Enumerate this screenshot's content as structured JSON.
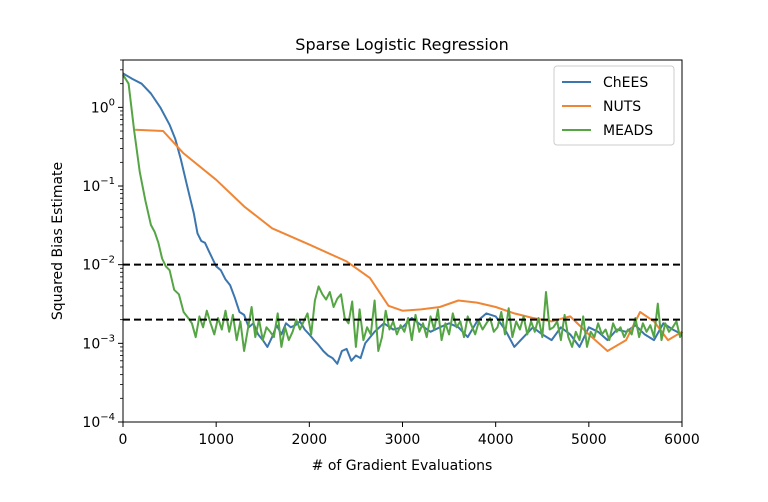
{
  "chart_data": {
    "type": "line",
    "title": "Sparse Logistic Regression",
    "xlabel": "# of Gradient Evaluations",
    "ylabel": "Squared Bias Estimate",
    "xlim": [
      0,
      6000
    ],
    "yscale": "log",
    "ylim": [
      0.0001,
      4
    ],
    "xticks": [
      0,
      1000,
      2000,
      3000,
      4000,
      5000,
      6000
    ],
    "xtick_labels": [
      "0",
      "1000",
      "2000",
      "3000",
      "4000",
      "5000",
      "6000"
    ],
    "yticks": [
      {
        "value": 1,
        "base": "10",
        "exp": "0"
      },
      {
        "value": 0.1,
        "base": "10",
        "exp": "−1"
      },
      {
        "value": 0.01,
        "base": "10",
        "exp": "−2"
      },
      {
        "value": 0.001,
        "base": "10",
        "exp": "−3"
      },
      {
        "value": 0.0001,
        "base": "10",
        "exp": "−4"
      }
    ],
    "reference_lines": [
      0.01,
      0.002
    ],
    "legend_position": "top-right",
    "series": [
      {
        "name": "ChEES",
        "color": "#3c76af",
        "x": [
          0,
          100,
          200,
          300,
          400,
          500,
          560,
          620,
          680,
          720,
          760,
          800,
          840,
          880,
          920,
          960,
          1000,
          1050,
          1100,
          1150,
          1200,
          1250,
          1300,
          1350,
          1400,
          1450,
          1500,
          1550,
          1600,
          1650,
          1700,
          1750,
          1800,
          1850,
          1900,
          1950,
          2000,
          2050,
          2100,
          2150,
          2200,
          2250,
          2300,
          2350,
          2400,
          2450,
          2500,
          2550,
          2600,
          2700,
          2800,
          2900,
          3000,
          3100,
          3200,
          3300,
          3400,
          3500,
          3600,
          3700,
          3800,
          3900,
          4000,
          4100,
          4200,
          4300,
          4400,
          4500,
          4600,
          4700,
          4800,
          4900,
          5000,
          5100,
          5200,
          5300,
          5400,
          5500,
          5600,
          5700,
          5800,
          5900,
          6000
        ],
        "y": [
          2.7,
          2.3,
          2.0,
          1.5,
          1.0,
          0.6,
          0.4,
          0.22,
          0.11,
          0.07,
          0.045,
          0.025,
          0.02,
          0.019,
          0.015,
          0.012,
          0.0095,
          0.0085,
          0.0065,
          0.0055,
          0.0038,
          0.0025,
          0.0023,
          0.0016,
          0.0018,
          0.0013,
          0.0011,
          0.0009,
          0.0012,
          0.0017,
          0.0013,
          0.0018,
          0.0016,
          0.0017,
          0.0019,
          0.0015,
          0.0013,
          0.0011,
          0.00095,
          0.0008,
          0.0007,
          0.00065,
          0.00055,
          0.0008,
          0.00085,
          0.0006,
          0.0007,
          0.00065,
          0.001,
          0.0014,
          0.0018,
          0.0015,
          0.0016,
          0.0021,
          0.0017,
          0.0014,
          0.0016,
          0.0018,
          0.0016,
          0.0012,
          0.0019,
          0.0024,
          0.0022,
          0.0015,
          0.0009,
          0.0012,
          0.0016,
          0.0013,
          0.0011,
          0.0016,
          0.0013,
          0.0009,
          0.0016,
          0.0014,
          0.0011,
          0.0015,
          0.0014,
          0.0017,
          0.0013,
          0.0011,
          0.0018,
          0.0015,
          0.0013
        ]
      },
      {
        "name": "NUTS",
        "color": "#ef8636",
        "x": [
          130,
          430,
          650,
          1000,
          1300,
          1600,
          2000,
          2400,
          2650,
          2850,
          3000,
          3200,
          3400,
          3600,
          3800,
          4000,
          4200,
          4400,
          4600,
          4800,
          5000,
          5200,
          5400,
          5550,
          5700,
          5850,
          6000
        ],
        "y": [
          0.52,
          0.5,
          0.26,
          0.12,
          0.055,
          0.029,
          0.018,
          0.011,
          0.0068,
          0.003,
          0.0026,
          0.0027,
          0.0029,
          0.0035,
          0.0033,
          0.0029,
          0.0024,
          0.0021,
          0.0019,
          0.0022,
          0.0013,
          0.0008,
          0.0011,
          0.0025,
          0.0019,
          0.0011,
          0.0014
        ]
      },
      {
        "name": "MEADS",
        "color": "#55a545",
        "x": [
          0,
          60,
          120,
          180,
          240,
          300,
          340,
          380,
          420,
          460,
          500,
          550,
          600,
          650,
          700,
          740,
          780,
          820,
          860,
          900,
          940,
          980,
          1020,
          1060,
          1100,
          1140,
          1180,
          1220,
          1260,
          1300,
          1340,
          1380,
          1420,
          1460,
          1500,
          1540,
          1580,
          1620,
          1660,
          1700,
          1740,
          1780,
          1820,
          1860,
          1900,
          1940,
          1980,
          2020,
          2060,
          2100,
          2140,
          2180,
          2220,
          2260,
          2300,
          2340,
          2380,
          2420,
          2460,
          2500,
          2540,
          2580,
          2620,
          2660,
          2700,
          2740,
          2780,
          2820,
          2860,
          2900,
          2940,
          2980,
          3020,
          3060,
          3100,
          3140,
          3180,
          3220,
          3260,
          3300,
          3340,
          3380,
          3420,
          3460,
          3500,
          3540,
          3580,
          3620,
          3660,
          3700,
          3740,
          3780,
          3820,
          3860,
          3900,
          3940,
          3980,
          4020,
          4060,
          4100,
          4140,
          4180,
          4220,
          4260,
          4300,
          4340,
          4380,
          4420,
          4460,
          4500,
          4540,
          4580,
          4620,
          4660,
          4700,
          4740,
          4780,
          4820,
          4860,
          4900,
          4940,
          4980,
          5020,
          5060,
          5100,
          5140,
          5180,
          5220,
          5260,
          5300,
          5340,
          5380,
          5420,
          5460,
          5500,
          5540,
          5580,
          5620,
          5660,
          5700,
          5740,
          5780,
          5820,
          5860,
          5900,
          5940,
          5980,
          6000
        ],
        "y": [
          2.6,
          2.0,
          0.5,
          0.15,
          0.065,
          0.032,
          0.026,
          0.019,
          0.012,
          0.0095,
          0.0085,
          0.0048,
          0.0042,
          0.0025,
          0.0021,
          0.0018,
          0.0012,
          0.0022,
          0.0016,
          0.0026,
          0.0018,
          0.0013,
          0.0021,
          0.0015,
          0.0026,
          0.0014,
          0.0023,
          0.0011,
          0.0019,
          0.0008,
          0.0015,
          0.0029,
          0.0012,
          0.002,
          0.0011,
          0.0016,
          0.0014,
          0.0012,
          0.0024,
          0.0009,
          0.0016,
          0.0011,
          0.0014,
          0.002,
          0.0015,
          0.0019,
          0.0024,
          0.0013,
          0.0035,
          0.0053,
          0.0042,
          0.0036,
          0.0045,
          0.0029,
          0.0037,
          0.0042,
          0.0021,
          0.0018,
          0.0034,
          0.0009,
          0.0027,
          0.0011,
          0.0016,
          0.0013,
          0.0035,
          0.0008,
          0.0012,
          0.0026,
          0.0015,
          0.0019,
          0.0013,
          0.0017,
          0.0014,
          0.0021,
          0.0011,
          0.0023,
          0.0014,
          0.0018,
          0.0012,
          0.0022,
          0.0015,
          0.0027,
          0.0011,
          0.0018,
          0.0013,
          0.0024,
          0.0016,
          0.0019,
          0.0012,
          0.0022,
          0.0017,
          0.0013,
          0.0019,
          0.0015,
          0.0018,
          0.0021,
          0.0014,
          0.0016,
          0.0025,
          0.0013,
          0.0028,
          0.0012,
          0.0019,
          0.0015,
          0.0022,
          0.0013,
          0.0019,
          0.0014,
          0.0021,
          0.0012,
          0.0045,
          0.0015,
          0.0016,
          0.0019,
          0.0011,
          0.0023,
          0.0012,
          0.0009,
          0.0014,
          0.0011,
          0.0022,
          0.0009,
          0.0014,
          0.0012,
          0.0018,
          0.0013,
          0.0015,
          0.0011,
          0.0018,
          0.0014,
          0.0016,
          0.0012,
          0.0015,
          0.0013,
          0.0021,
          0.0012,
          0.0018,
          0.0014,
          0.0017,
          0.0012,
          0.0032,
          0.0011,
          0.0018,
          0.0014,
          0.0016,
          0.0019,
          0.0012,
          0.0014
        ]
      }
    ]
  }
}
